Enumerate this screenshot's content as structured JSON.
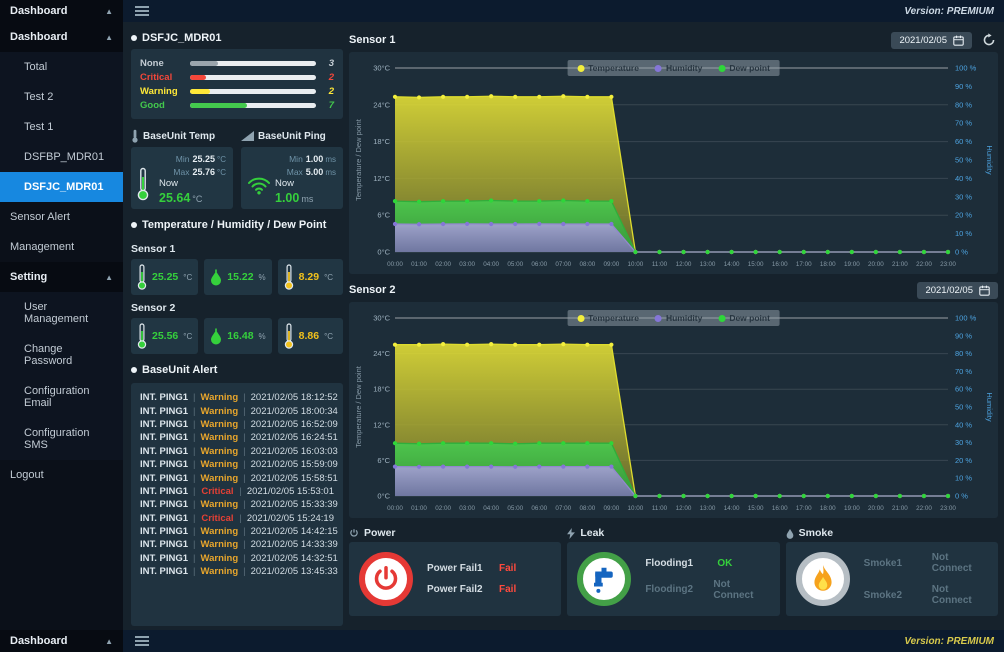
{
  "version_label": "Version: PREMIUM",
  "sidebar": {
    "header_label": "Dashboard",
    "footer_label": "Dashboard",
    "items": [
      {
        "label": "Dashboard",
        "kind": "group",
        "arrow": true
      },
      {
        "label": "Total",
        "kind": "sub"
      },
      {
        "label": "Test 2",
        "kind": "sub"
      },
      {
        "label": "Test 1",
        "kind": "sub"
      },
      {
        "label": "DSFBP_MDR01",
        "kind": "sub"
      },
      {
        "label": "DSFJC_MDR01",
        "kind": "sub",
        "selected": true
      },
      {
        "label": "Sensor Alert",
        "kind": "item"
      },
      {
        "label": "Management",
        "kind": "item"
      },
      {
        "label": "Setting",
        "kind": "group",
        "arrow": true
      },
      {
        "label": "User Management",
        "kind": "sub"
      },
      {
        "label": "Change Password",
        "kind": "sub"
      },
      {
        "label": "Configuration Email",
        "kind": "sub"
      },
      {
        "label": "Configuration SMS",
        "kind": "sub"
      },
      {
        "label": "Logout",
        "kind": "item"
      }
    ]
  },
  "status": {
    "title": "DSFJC_MDR01",
    "rows": [
      {
        "label": "None",
        "count": "3",
        "color": "#c3ccd3",
        "fill": "#9aa5ad",
        "pct": 22
      },
      {
        "label": "Critical",
        "count": "2",
        "color": "#f4473a",
        "fill": "#f4473a",
        "pct": 13
      },
      {
        "label": "Warning",
        "count": "2",
        "color": "#ffe838",
        "fill": "#ffe838",
        "pct": 16
      },
      {
        "label": "Good",
        "count": "7",
        "color": "#43c94d",
        "fill": "#43c94d",
        "pct": 45
      }
    ]
  },
  "labels": {
    "min": "Min",
    "max": "Max",
    "now": "Now"
  },
  "gauges": [
    {
      "title": "BaseUnit Temp",
      "icon": "thermometer-icon",
      "min": "25.25",
      "max": "25.76",
      "now": "25.64",
      "unit": "°C"
    },
    {
      "title": "BaseUnit Ping",
      "icon": "signal-bars-icon",
      "min": "1.00",
      "max": "5.00",
      "now": "1.00",
      "unit": "ms"
    }
  ],
  "thd": {
    "title": "Temperature / Humidity / Dew Point",
    "sensors": [
      {
        "name": "Sensor 1",
        "cards": [
          {
            "icon": "thermometer-icon",
            "value": "25.25",
            "unit": "°C",
            "color": "#35d03c"
          },
          {
            "icon": "humidity-drop-icon",
            "value": "15.22",
            "unit": "%",
            "color": "#35d03c"
          },
          {
            "icon": "dewpoint-thermometer-icon",
            "value": "8.29",
            "unit": "°C",
            "color": "#f2c21c"
          }
        ]
      },
      {
        "name": "Sensor 2",
        "cards": [
          {
            "icon": "thermometer-icon",
            "value": "25.56",
            "unit": "°C",
            "color": "#35d03c"
          },
          {
            "icon": "humidity-drop-icon",
            "value": "16.48",
            "unit": "%",
            "color": "#35d03c"
          },
          {
            "icon": "dewpoint-thermometer-icon",
            "value": "8.86",
            "unit": "°C",
            "color": "#f2c21c"
          }
        ]
      }
    ]
  },
  "alerts": {
    "title": "BaseUnit Alert",
    "rows": [
      {
        "name": "INT. PING1",
        "severity": "Warning",
        "time": "2021/02/05 18:12:52"
      },
      {
        "name": "INT. PING1",
        "severity": "Warning",
        "time": "2021/02/05 18:00:34"
      },
      {
        "name": "INT. PING1",
        "severity": "Warning",
        "time": "2021/02/05 16:52:09"
      },
      {
        "name": "INT. PING1",
        "severity": "Warning",
        "time": "2021/02/05 16:24:51"
      },
      {
        "name": "INT. PING1",
        "severity": "Warning",
        "time": "2021/02/05 16:03:03"
      },
      {
        "name": "INT. PING1",
        "severity": "Warning",
        "time": "2021/02/05 15:59:09"
      },
      {
        "name": "INT. PING1",
        "severity": "Warning",
        "time": "2021/02/05 15:58:51"
      },
      {
        "name": "INT. PING1",
        "severity": "Critical",
        "time": "2021/02/05 15:53:01"
      },
      {
        "name": "INT. PING1",
        "severity": "Warning",
        "time": "2021/02/05 15:33:39"
      },
      {
        "name": "INT. PING1",
        "severity": "Critical",
        "time": "2021/02/05 15:24:19"
      },
      {
        "name": "INT. PING1",
        "severity": "Warning",
        "time": "2021/02/05 14:42:15"
      },
      {
        "name": "INT. PING1",
        "severity": "Warning",
        "time": "2021/02/05 14:33:39"
      },
      {
        "name": "INT. PING1",
        "severity": "Warning",
        "time": "2021/02/05 14:32:51"
      },
      {
        "name": "INT. PING1",
        "severity": "Warning",
        "time": "2021/02/05 13:45:33"
      }
    ]
  },
  "chart_data": [
    {
      "name": "Sensor 1",
      "type": "area",
      "date": "2021/02/05",
      "has_refresh": true,
      "x": [
        "00:00",
        "01:00",
        "02:00",
        "03:00",
        "04:00",
        "05:00",
        "06:00",
        "07:00",
        "08:00",
        "09:00",
        "10:00",
        "11:00",
        "12:00",
        "13:00",
        "14:00",
        "15:00",
        "16:00",
        "17:00",
        "18:00",
        "19:00",
        "20:00",
        "21:00",
        "22:00",
        "23:00"
      ],
      "ylabel": "Temperature / Dew point",
      "y2label": "Humidity",
      "ylim": [
        0,
        30
      ],
      "y2lim": [
        0,
        100
      ],
      "yticks": [
        0,
        6,
        12,
        18,
        24,
        30
      ],
      "y2ticks": [
        0,
        10,
        20,
        30,
        40,
        50,
        60,
        70,
        80,
        90,
        100
      ],
      "legend_position": "top",
      "series": [
        {
          "name": "Temperature",
          "axis": "left",
          "color": "#dedc2e",
          "marker": "#f2ee3d",
          "fill_top": "#e9e436",
          "fill_bottom": "#74762c",
          "values": [
            25.3,
            25.2,
            25.3,
            25.3,
            25.4,
            25.3,
            25.3,
            25.4,
            25.3,
            25.3,
            0,
            0,
            0,
            0,
            0,
            0,
            0,
            0,
            0,
            0,
            0,
            0,
            0,
            0
          ]
        },
        {
          "name": "Humidity",
          "axis": "right",
          "color": "#9287cf",
          "marker": "#8576d8",
          "fill_top": "#aaa0dc",
          "fill_bottom": "#7b71b6",
          "values": [
            15.2,
            15.1,
            15.2,
            15.3,
            15.2,
            15.2,
            15.3,
            15.2,
            15.2,
            15.2,
            0,
            0,
            0,
            0,
            0,
            0,
            0,
            0,
            0,
            0,
            0,
            0,
            0,
            0
          ]
        },
        {
          "name": "Dew point",
          "axis": "left",
          "color": "#2fae3b",
          "marker": "#2ed639",
          "fill_top": "#44cc50",
          "fill_bottom": "#2f9e3c",
          "values": [
            8.3,
            8.2,
            8.3,
            8.3,
            8.4,
            8.3,
            8.3,
            8.4,
            8.3,
            8.3,
            0,
            0,
            0,
            0,
            0,
            0,
            0,
            0,
            0,
            0,
            0,
            0,
            0,
            0
          ]
        }
      ]
    },
    {
      "name": "Sensor 2",
      "type": "area",
      "date": "2021/02/05",
      "has_refresh": false,
      "x": [
        "00:00",
        "01:00",
        "02:00",
        "03:00",
        "04:00",
        "05:00",
        "06:00",
        "07:00",
        "08:00",
        "09:00",
        "10:00",
        "11:00",
        "12:00",
        "13:00",
        "14:00",
        "15:00",
        "16:00",
        "17:00",
        "18:00",
        "19:00",
        "20:00",
        "21:00",
        "22:00",
        "23:00"
      ],
      "ylabel": "Temperature / Dew point",
      "y2label": "Humidity",
      "ylim": [
        0,
        30
      ],
      "y2lim": [
        0,
        100
      ],
      "yticks": [
        0,
        6,
        12,
        18,
        24,
        30
      ],
      "y2ticks": [
        0,
        10,
        20,
        30,
        40,
        50,
        60,
        70,
        80,
        90,
        100
      ],
      "legend_position": "top",
      "series": [
        {
          "name": "Temperature",
          "axis": "left",
          "color": "#dedc2e",
          "marker": "#f2ee3d",
          "fill_top": "#e9e436",
          "fill_bottom": "#74762c",
          "values": [
            25.5,
            25.5,
            25.6,
            25.5,
            25.6,
            25.5,
            25.5,
            25.6,
            25.5,
            25.5,
            0,
            0,
            0,
            0,
            0,
            0,
            0,
            0,
            0,
            0,
            0,
            0,
            0,
            0
          ]
        },
        {
          "name": "Humidity",
          "axis": "right",
          "color": "#9287cf",
          "marker": "#8576d8",
          "fill_top": "#aaa0dc",
          "fill_bottom": "#7b71b6",
          "values": [
            16.5,
            16.4,
            16.5,
            16.5,
            16.5,
            16.4,
            16.5,
            16.5,
            16.5,
            16.5,
            0,
            0,
            0,
            0,
            0,
            0,
            0,
            0,
            0,
            0,
            0,
            0,
            0,
            0
          ]
        },
        {
          "name": "Dew point",
          "axis": "left",
          "color": "#2fae3b",
          "marker": "#2ed639",
          "fill_top": "#44cc50",
          "fill_bottom": "#2f9e3c",
          "values": [
            8.9,
            8.8,
            8.9,
            8.9,
            8.9,
            8.8,
            8.9,
            8.9,
            8.9,
            8.9,
            0,
            0,
            0,
            0,
            0,
            0,
            0,
            0,
            0,
            0,
            0,
            0,
            0,
            0
          ]
        }
      ]
    }
  ],
  "bottom_panels": [
    {
      "id": "power",
      "title": "Power",
      "header_icon": "power-icon",
      "big_icon": "power-icon",
      "ring": "#e53935",
      "rows": [
        {
          "label": "Power Fail1",
          "status": "Fail",
          "state": "fail"
        },
        {
          "label": "Power Fail2",
          "status": "Fail",
          "state": "fail"
        }
      ]
    },
    {
      "id": "leak",
      "title": "Leak",
      "header_icon": "bolt-icon",
      "big_icon": "faucet-icon",
      "ring": "#43a047",
      "rows": [
        {
          "label": "Flooding1",
          "status": "OK",
          "state": "ok"
        },
        {
          "label": "Flooding2",
          "status": "Not Connect",
          "state": "nc"
        }
      ]
    },
    {
      "id": "smoke",
      "title": "Smoke",
      "header_icon": "drop-icon",
      "big_icon": "flame-icon",
      "ring": "#b6bec4",
      "rows": [
        {
          "label": "Smoke1",
          "status": "Not Connect",
          "state": "nc"
        },
        {
          "label": "Smoke2",
          "status": "Not Connect",
          "state": "nc"
        }
      ]
    }
  ]
}
